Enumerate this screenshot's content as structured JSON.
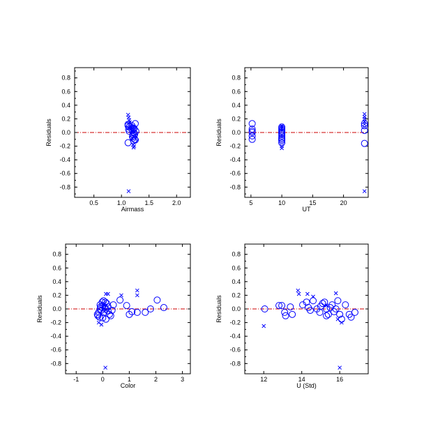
{
  "chart_data": [
    {
      "type": "scatter",
      "xlabel": "Airmass",
      "ylabel": "Residuals",
      "xlim": [
        0.15,
        2.25
      ],
      "ylim": [
        -0.95,
        0.95
      ],
      "xticks": [
        "0.5",
        "1.0",
        "1.5",
        "2.0"
      ],
      "yticks": [
        "0.8",
        "0.6",
        "0.4",
        "0.2",
        "0.0",
        "-0.2",
        "-0.4",
        "-0.6",
        "-0.8"
      ],
      "reference_line": 0.0,
      "series": [
        {
          "marker": "circle",
          "x": [
            1.12,
            1.14,
            1.13,
            1.12,
            1.2,
            1.22,
            1.21,
            1.23,
            1.24,
            1.19,
            1.2,
            1.22,
            1.25,
            1.21,
            1.22,
            1.24,
            1.26,
            1.23,
            1.2,
            1.25,
            1.14,
            1.12
          ],
          "y": [
            0.12,
            0.08,
            0.05,
            -0.15,
            0.03,
            0.0,
            -0.03,
            -0.05,
            -0.1,
            0.1,
            0.07,
            0.05,
            0.13,
            -0.08,
            -0.12,
            -0.02,
            0.02,
            0.06,
            -0.06,
            -0.11,
            0.02,
            0.1
          ]
        },
        {
          "marker": "x",
          "x": [
            1.12,
            1.13,
            1.14,
            1.15,
            1.12,
            1.22,
            1.21,
            1.23,
            1.22,
            1.14,
            1.2,
            1.13
          ],
          "y": [
            0.26,
            0.22,
            0.18,
            0.15,
            0.13,
            0.08,
            -0.18,
            -0.2,
            -0.22,
            0.06,
            0.02,
            -0.86
          ]
        }
      ]
    },
    {
      "type": "scatter",
      "xlabel": "UT",
      "ylabel": "Residuals",
      "xlim": [
        4,
        24
      ],
      "ylim": [
        -0.95,
        0.95
      ],
      "xticks": [
        "5",
        "10",
        "15",
        "20"
      ],
      "yticks": [
        "0.8",
        "0.6",
        "0.4",
        "0.2",
        "0.0",
        "-0.2",
        "-0.4",
        "-0.6",
        "-0.8"
      ],
      "reference_line": 0.0,
      "series": [
        {
          "marker": "circle",
          "x": [
            5.2,
            5.2,
            5.2,
            5.2,
            5.2,
            5.2,
            10,
            10,
            10,
            10,
            10,
            10,
            10,
            10,
            10,
            10,
            10,
            23.4,
            23.4,
            23.4,
            23.4
          ],
          "y": [
            0.13,
            0.05,
            0.02,
            0.0,
            -0.05,
            -0.1,
            0.08,
            0.06,
            0.04,
            0.02,
            0.0,
            -0.02,
            -0.05,
            -0.08,
            -0.1,
            -0.12,
            -0.15,
            0.13,
            0.1,
            0.03,
            -0.16
          ]
        },
        {
          "marker": "x",
          "x": [
            10,
            10,
            10,
            10,
            10,
            23.4,
            23.4,
            23.4,
            23.4,
            23.4,
            23.4
          ],
          "y": [
            0.1,
            0.08,
            0.06,
            -0.2,
            -0.23,
            0.27,
            0.23,
            0.2,
            0.16,
            0.12,
            -0.86
          ]
        }
      ]
    },
    {
      "type": "scatter",
      "xlabel": "Color",
      "ylabel": "Residuals",
      "xlim": [
        -1.4,
        3.3
      ],
      "ylim": [
        -0.95,
        0.95
      ],
      "xticks": [
        "-1",
        "0",
        "1",
        "2",
        "3"
      ],
      "yticks": [
        "0.8",
        "0.6",
        "0.4",
        "0.2",
        "0.0",
        "-0.2",
        "-0.4",
        "-0.6",
        "-0.8"
      ],
      "reference_line": 0.0,
      "series": [
        {
          "marker": "circle",
          "x": [
            -0.2,
            -0.18,
            -0.15,
            -0.12,
            -0.1,
            -0.08,
            -0.05,
            -0.02,
            0.0,
            0.03,
            0.05,
            0.08,
            0.1,
            0.12,
            0.15,
            0.2,
            0.25,
            0.3,
            0.35,
            0.4,
            0.65,
            0.9,
            1.0,
            1.1,
            1.3,
            1.6,
            1.8,
            2.05,
            2.3,
            -0.1,
            0.0,
            0.1,
            0.2
          ],
          "y": [
            -0.08,
            -0.1,
            -0.05,
            -0.12,
            0.0,
            0.03,
            -0.02,
            0.1,
            0.05,
            0.12,
            -0.05,
            0.02,
            0.0,
            -0.15,
            0.08,
            0.03,
            -0.08,
            -0.1,
            -0.02,
            0.06,
            0.13,
            0.05,
            -0.08,
            -0.04,
            -0.05,
            -0.05,
            0.0,
            0.13,
            0.02,
            0.06,
            -0.13,
            0.1,
            -0.03
          ]
        },
        {
          "marker": "x",
          "x": [
            -0.15,
            -0.05,
            0.05,
            0.12,
            0.2,
            0.7,
            1.3,
            1.3,
            0.1
          ],
          "y": [
            -0.2,
            -0.23,
            0.0,
            0.22,
            0.22,
            0.2,
            0.27,
            0.2,
            -0.86
          ]
        }
      ]
    },
    {
      "type": "scatter",
      "xlabel": "U (Std)",
      "ylabel": "Residuals",
      "xlim": [
        11,
        17.5
      ],
      "ylim": [
        -0.95,
        0.95
      ],
      "xticks": [
        "12",
        "14",
        "16"
      ],
      "yticks": [
        "0.8",
        "0.6",
        "0.4",
        "0.2",
        "0.0",
        "-0.2",
        "-0.4",
        "-0.6",
        "-0.8"
      ],
      "reference_line": 0.0,
      "series": [
        {
          "marker": "circle",
          "x": [
            12.05,
            12.8,
            12.95,
            13.1,
            13.15,
            13.4,
            13.5,
            14.05,
            14.25,
            14.35,
            14.45,
            14.6,
            14.8,
            14.95,
            15.1,
            15.2,
            15.3,
            15.4,
            15.5,
            15.6,
            15.7,
            15.8,
            15.9,
            16.0,
            16.1,
            16.3,
            16.5,
            16.6,
            16.8,
            15.3,
            15.0
          ],
          "y": [
            0.0,
            0.05,
            0.05,
            -0.05,
            -0.1,
            0.03,
            -0.08,
            0.06,
            0.1,
            0.02,
            -0.02,
            0.12,
            0.0,
            -0.05,
            0.08,
            0.1,
            -0.1,
            -0.08,
            0.02,
            0.06,
            -0.04,
            0.0,
            0.12,
            -0.08,
            -0.15,
            0.06,
            -0.08,
            -0.12,
            -0.05,
            0.0,
            0.04
          ]
        },
        {
          "marker": "x",
          "x": [
            12.0,
            13.8,
            13.85,
            14.3,
            14.6,
            15.3,
            15.8,
            15.9,
            16.1,
            16.0
          ],
          "y": [
            -0.25,
            0.27,
            0.22,
            0.22,
            0.18,
            0.05,
            0.23,
            -0.15,
            -0.2,
            -0.86
          ]
        }
      ]
    }
  ],
  "colors": {
    "marker": "#0000ff",
    "reference_line": "#cc0000",
    "axes": "#000000"
  }
}
